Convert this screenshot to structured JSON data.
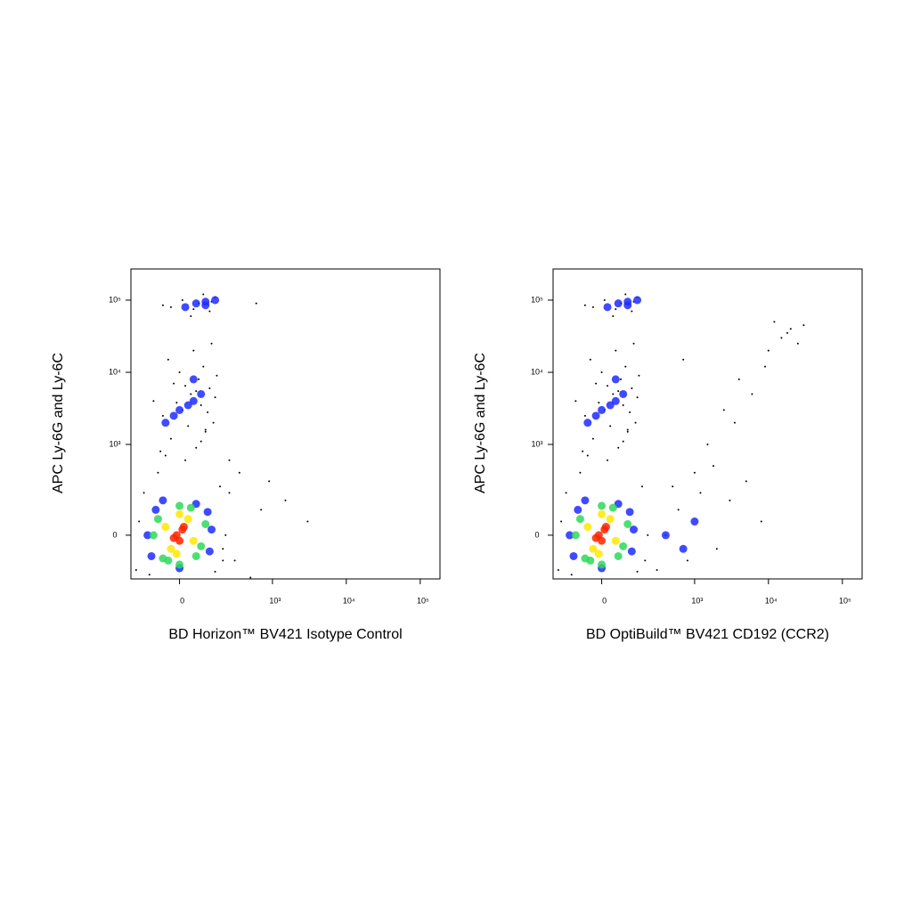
{
  "chart_data": [
    {
      "type": "scatter",
      "x_label": "BD Horizon™ BV421 Isotype Control",
      "y_label": "APC Ly-6G and Ly-6C",
      "xlim": [
        -240,
        185000
      ],
      "ylim": [
        -210,
        270000
      ],
      "xticks": [
        0,
        {
          "value": 1000,
          "label": "10³"
        },
        {
          "value": 10000,
          "label": "10⁴"
        },
        {
          "value": 100000,
          "label": "10⁵"
        }
      ],
      "yticks": [
        0,
        {
          "value": 1000,
          "label": "10³"
        },
        {
          "value": 10000,
          "label": "10⁴"
        },
        {
          "value": 100000,
          "label": "10⁵"
        }
      ],
      "series": [
        {
          "color": "#000000",
          "x": [
            -80,
            20,
            60,
            -30,
            100,
            140,
            -60,
            10,
            80,
            -100,
            40,
            120,
            -20,
            70,
            160,
            0,
            90,
            -40,
            50,
            130,
            -70,
            30,
            110,
            -10,
            150,
            60,
            20,
            -50,
            80,
            100,
            40,
            120,
            -30,
            70,
            10,
            150,
            90,
            -60,
            130,
            50,
            250,
            300,
            500,
            700,
            900,
            1500,
            3000,
            200,
            350,
            250,
            600,
            -200,
            -150,
            200,
            180,
            -180,
            220,
            -120,
            150
          ],
          "y": [
            400,
            600,
            900,
            1200,
            1500,
            2000,
            2500,
            3000,
            3500,
            4000,
            5000,
            6000,
            7000,
            8000,
            9000,
            10000,
            12000,
            15000,
            20000,
            25000,
            800,
            1800,
            2800,
            3800,
            4500,
            5500,
            6500,
            700,
            1100,
            1600,
            60000,
            70000,
            80000,
            90000,
            100000,
            110000,
            120000,
            85000,
            95000,
            75000,
            200,
            -100,
            -200,
            100,
            300,
            150,
            50,
            -50,
            400,
            600,
            90000,
            -150,
            200,
            -100,
            250,
            50,
            0,
            -180,
            -160
          ]
        },
        {
          "color": "#1f2cff",
          "x": [
            -50,
            0,
            50,
            -20,
            30,
            80,
            20,
            60,
            100,
            -130,
            130,
            -110,
            120,
            -90,
            110,
            0,
            -60,
            60,
            50,
            100,
            150
          ],
          "y": [
            2000,
            3000,
            4000,
            2500,
            3500,
            5000,
            80000,
            90000,
            95000,
            0,
            20,
            -80,
            -60,
            100,
            90,
            -140,
            150,
            130,
            8000,
            85000,
            100000
          ]
        },
        {
          "color": "#2fd85a",
          "x": [
            -100,
            -80,
            80,
            100,
            -40,
            40,
            0,
            60,
            -60,
            0
          ],
          "y": [
            0,
            60,
            -40,
            40,
            -100,
            110,
            120,
            -80,
            -90,
            -120
          ]
        },
        {
          "color": "#ffe800",
          "x": [
            -50,
            50,
            -30,
            30,
            0,
            -10
          ],
          "y": [
            30,
            -20,
            -50,
            60,
            80,
            -70
          ]
        },
        {
          "color": "#ff2200",
          "x": [
            -10,
            10,
            0,
            -20,
            15
          ],
          "y": [
            0,
            20,
            -20,
            -10,
            30
          ]
        }
      ]
    },
    {
      "type": "scatter",
      "x_label": "BD OptiBuild™ BV421 CD192 (CCR2)",
      "y_label": "APC Ly-6G and Ly-6C",
      "xlim": [
        -240,
        185000
      ],
      "ylim": [
        -210,
        270000
      ],
      "xticks": [
        0,
        {
          "value": 1000,
          "label": "10³"
        },
        {
          "value": 10000,
          "label": "10⁴"
        },
        {
          "value": 100000,
          "label": "10⁵"
        }
      ],
      "yticks": [
        0,
        {
          "value": 1000,
          "label": "10³"
        },
        {
          "value": 10000,
          "label": "10⁴"
        },
        {
          "value": 100000,
          "label": "10⁵"
        }
      ],
      "series": [
        {
          "color": "#000000",
          "x": [
            -80,
            20,
            60,
            -30,
            100,
            140,
            -60,
            10,
            80,
            -100,
            40,
            120,
            -20,
            70,
            160,
            0,
            90,
            -40,
            50,
            130,
            -70,
            30,
            110,
            -10,
            150,
            60,
            20,
            -50,
            80,
            100,
            40,
            120,
            -30,
            70,
            10,
            150,
            90,
            -60,
            130,
            50,
            -200,
            -150,
            200,
            180,
            -180,
            220,
            -120,
            150,
            400,
            600,
            800,
            1200,
            2000,
            3000,
            5000,
            8000,
            300,
            500,
            1000,
            1500,
            2500,
            4000,
            700,
            10000,
            15000,
            20000,
            12000,
            18000,
            25000,
            30000,
            9000,
            6000,
            3500,
            1800
          ],
          "y": [
            400,
            600,
            900,
            1200,
            1500,
            2000,
            2500,
            3000,
            3500,
            4000,
            5000,
            6000,
            7000,
            8000,
            9000,
            10000,
            12000,
            15000,
            20000,
            25000,
            800,
            1800,
            2800,
            3800,
            4500,
            5500,
            6500,
            700,
            1100,
            1600,
            60000,
            70000,
            80000,
            90000,
            100000,
            110000,
            120000,
            85000,
            95000,
            75000,
            -150,
            200,
            -100,
            250,
            50,
            0,
            -180,
            -160,
            0,
            100,
            -100,
            200,
            -50,
            150,
            300,
            50,
            -150,
            250,
            400,
            1000,
            3000,
            8000,
            15000,
            20000,
            30000,
            40000,
            50000,
            35000,
            25000,
            45000,
            12000,
            5000,
            2000,
            500
          ]
        },
        {
          "color": "#1f2cff",
          "x": [
            -50,
            0,
            50,
            -20,
            30,
            80,
            20,
            60,
            100,
            -130,
            130,
            -110,
            120,
            -90,
            110,
            0,
            -60,
            60,
            50,
            100,
            150,
            400,
            700,
            1000
          ],
          "y": [
            2000,
            3000,
            4000,
            2500,
            3500,
            5000,
            80000,
            90000,
            95000,
            0,
            20,
            -80,
            -60,
            100,
            90,
            -140,
            150,
            130,
            8000,
            85000,
            100000,
            0,
            -50,
            50
          ]
        },
        {
          "color": "#2fd85a",
          "x": [
            -100,
            -80,
            80,
            100,
            -40,
            40,
            0,
            60,
            -60,
            0
          ],
          "y": [
            0,
            60,
            -40,
            40,
            -100,
            110,
            120,
            -80,
            -90,
            -120
          ]
        },
        {
          "color": "#ffe800",
          "x": [
            -50,
            50,
            -30,
            30,
            0,
            -10
          ],
          "y": [
            30,
            -20,
            -50,
            60,
            80,
            -70
          ]
        },
        {
          "color": "#ff2200",
          "x": [
            -10,
            10,
            0,
            -20,
            15
          ],
          "y": [
            0,
            20,
            -20,
            -10,
            30
          ]
        }
      ]
    }
  ]
}
